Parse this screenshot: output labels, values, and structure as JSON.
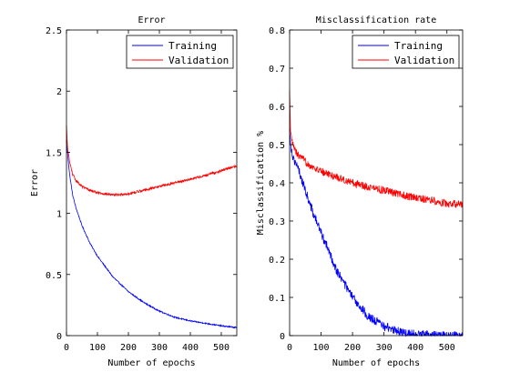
{
  "chart_data": [
    {
      "type": "line",
      "title": "Error",
      "xlabel": "Number of epochs",
      "ylabel": "Error",
      "xlim": [
        0,
        550
      ],
      "ylim": [
        0,
        2.5
      ],
      "xticks": [
        0,
        100,
        200,
        300,
        400,
        500
      ],
      "yticks": [
        0,
        0.5,
        1,
        1.5,
        2,
        2.5
      ],
      "xtick_labels": [
        "0",
        "100",
        "200",
        "300",
        "400",
        "500"
      ],
      "ytick_labels": [
        "0",
        "0.5",
        "1",
        "1.5",
        "2",
        "2.5"
      ],
      "legend_position": "top-right",
      "series": [
        {
          "name": "Training",
          "color": "#0000ff",
          "noise": 0.005,
          "x": [
            0,
            5,
            10,
            20,
            30,
            50,
            75,
            100,
            150,
            200,
            250,
            300,
            350,
            400,
            450,
            500,
            550
          ],
          "y": [
            1.6,
            1.45,
            1.32,
            1.15,
            1.05,
            0.9,
            0.76,
            0.65,
            0.48,
            0.36,
            0.27,
            0.2,
            0.15,
            0.12,
            0.1,
            0.08,
            0.065
          ]
        },
        {
          "name": "Validation",
          "color": "#ff0000",
          "noise": 0.01,
          "x": [
            0,
            3,
            10,
            20,
            30,
            50,
            75,
            100,
            150,
            200,
            250,
            300,
            350,
            400,
            450,
            500,
            550
          ],
          "y": [
            1.72,
            1.55,
            1.42,
            1.32,
            1.27,
            1.22,
            1.19,
            1.17,
            1.15,
            1.16,
            1.19,
            1.22,
            1.25,
            1.28,
            1.31,
            1.35,
            1.39
          ]
        }
      ]
    },
    {
      "type": "line",
      "title": "Misclassification rate",
      "xlabel": "Number of epochs",
      "ylabel": "Misclassification %",
      "xlim": [
        0,
        550
      ],
      "ylim": [
        0,
        0.8
      ],
      "xticks": [
        0,
        100,
        200,
        300,
        400,
        500
      ],
      "yticks": [
        0,
        0.1,
        0.2,
        0.3,
        0.4,
        0.5,
        0.6,
        0.7,
        0.8
      ],
      "xtick_labels": [
        "0",
        "100",
        "200",
        "300",
        "400",
        "500"
      ],
      "ytick_labels": [
        "0",
        "0.1",
        "0.2",
        "0.3",
        "0.4",
        "0.5",
        "0.6",
        "0.7",
        "0.8"
      ],
      "legend_position": "top-right",
      "series": [
        {
          "name": "Training",
          "color": "#0000ff",
          "noise": 0.012,
          "x": [
            0,
            5,
            10,
            20,
            30,
            50,
            75,
            100,
            150,
            200,
            250,
            300,
            350,
            400,
            450,
            500,
            550
          ],
          "y": [
            0.54,
            0.49,
            0.47,
            0.45,
            0.43,
            0.38,
            0.32,
            0.27,
            0.17,
            0.1,
            0.05,
            0.025,
            0.01,
            0.003,
            0.001,
            0.0,
            0.0
          ]
        },
        {
          "name": "Validation",
          "color": "#ff0000",
          "noise": 0.01,
          "x": [
            0,
            3,
            10,
            20,
            30,
            50,
            75,
            100,
            150,
            200,
            250,
            300,
            350,
            400,
            450,
            500,
            550
          ],
          "y": [
            0.64,
            0.53,
            0.5,
            0.48,
            0.47,
            0.455,
            0.44,
            0.43,
            0.415,
            0.4,
            0.39,
            0.38,
            0.37,
            0.36,
            0.355,
            0.345,
            0.345
          ]
        }
      ]
    }
  ]
}
